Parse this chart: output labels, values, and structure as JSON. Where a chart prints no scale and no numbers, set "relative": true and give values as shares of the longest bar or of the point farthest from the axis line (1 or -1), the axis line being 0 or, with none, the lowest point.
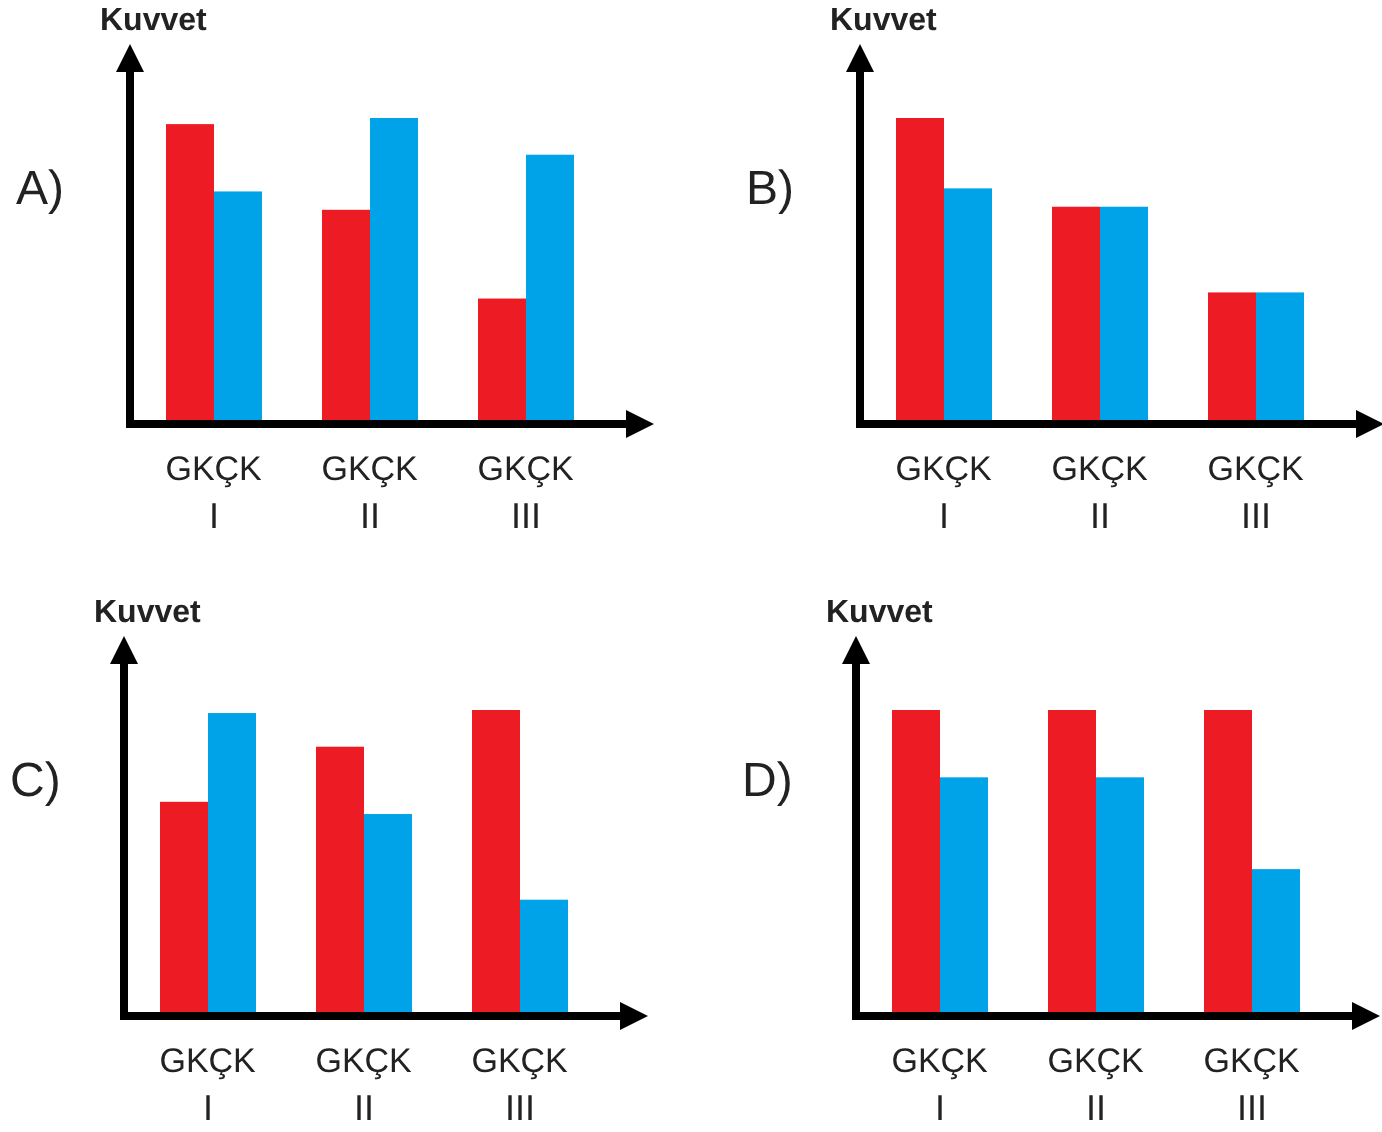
{
  "chart_data": [
    {
      "type": "bar",
      "title": "A)",
      "ylabel": "Kuvvet",
      "categories": [
        "I",
        "II",
        "III"
      ],
      "relative": true,
      "series": [
        {
          "name": "GK",
          "color": "#ed1c24",
          "values": [
            0.98,
            0.7,
            0.41
          ]
        },
        {
          "name": "ÇK",
          "color": "#00a2e8",
          "values": [
            0.76,
            1,
            0.88
          ]
        }
      ]
    },
    {
      "type": "bar",
      "title": "B)",
      "ylabel": "Kuvvet",
      "categories": [
        "I",
        "II",
        "III"
      ],
      "relative": true,
      "series": [
        {
          "name": "GK",
          "color": "#ed1c24",
          "values": [
            1,
            0.71,
            0.43
          ]
        },
        {
          "name": "ÇK",
          "color": "#00a2e8",
          "values": [
            0.77,
            0.71,
            0.43
          ]
        }
      ]
    },
    {
      "type": "bar",
      "title": "C)",
      "ylabel": "Kuvvet",
      "categories": [
        "I",
        "II",
        "III"
      ],
      "relative": true,
      "series": [
        {
          "name": "GK",
          "color": "#ed1c24",
          "values": [
            0.7,
            0.88,
            1
          ]
        },
        {
          "name": "ÇK",
          "color": "#00a2e8",
          "values": [
            0.99,
            0.66,
            0.38
          ]
        }
      ]
    },
    {
      "type": "bar",
      "title": "D)",
      "ylabel": "Kuvvet",
      "categories": [
        "I",
        "II",
        "III"
      ],
      "relative": true,
      "series": [
        {
          "name": "GK",
          "color": "#ed1c24",
          "values": [
            1,
            1,
            1
          ]
        },
        {
          "name": "ÇK",
          "color": "#00a2e8",
          "values": [
            0.78,
            0.78,
            0.48
          ]
        }
      ]
    }
  ]
}
